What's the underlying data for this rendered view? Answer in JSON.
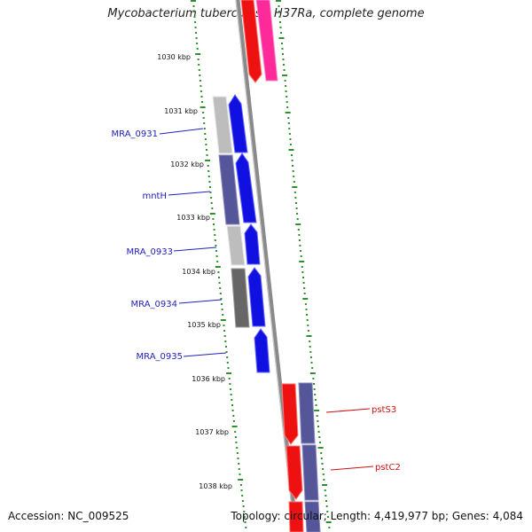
{
  "title": "Mycobacterium tuberculosis H37Ra, complete genome",
  "footer": {
    "accession": "Accession: NC_009525",
    "summary": "Topology: circular; Length: 4,419,977 bp; Genes: 4,084"
  },
  "colors": {
    "backbone": "#8a8a8a",
    "tick": "#2f8f2f",
    "forward_gene": "#1010e0",
    "reverse_gene": "#ee1111",
    "reverse_gene_alt": "#ff2a9a",
    "feature_forward": "#555599",
    "feature_gray": "#bdbdbd",
    "forward_label": "#2020c0",
    "reverse_label": "#cc1111"
  },
  "scale_labels": [
    "1030 kbp",
    "1031 kbp",
    "1032 kbp",
    "1033 kbp",
    "1034 kbp",
    "1035 kbp",
    "1036 kbp",
    "1037 kbp",
    "1038 kbp"
  ],
  "forward_gene_labels": [
    "MRA_0931",
    "mntH",
    "MRA_0933",
    "MRA_0934",
    "MRA_0935"
  ],
  "reverse_gene_labels": [
    "pstS3",
    "pstC2"
  ]
}
